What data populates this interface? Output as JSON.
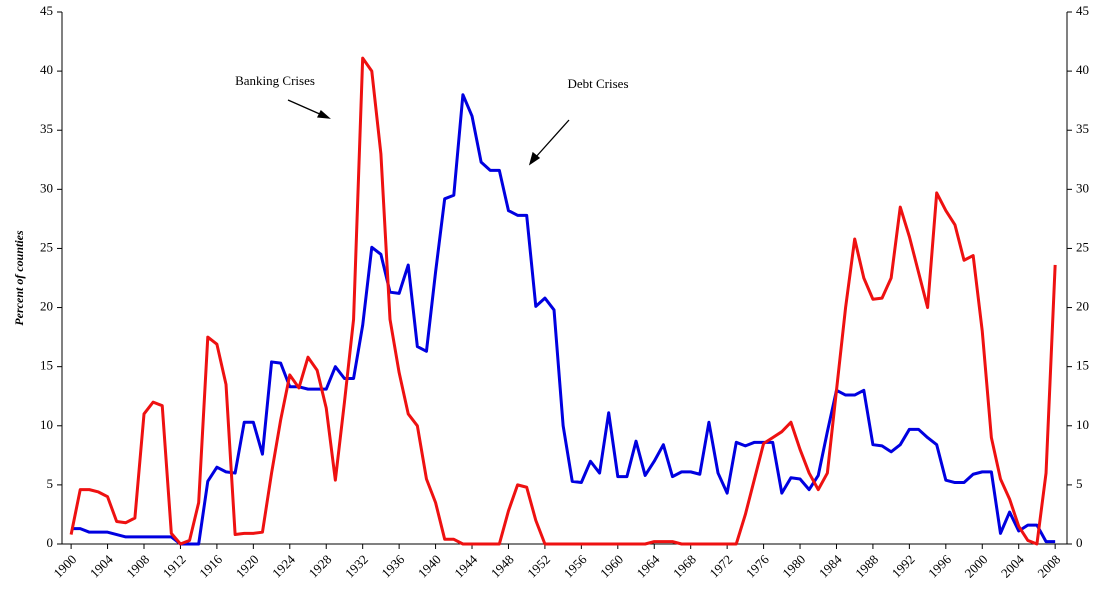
{
  "chart_data": {
    "type": "line",
    "y_label": "Percent of counties",
    "annotations": [
      "Banking Crises",
      "Debt Crises"
    ],
    "x": [
      1900,
      1901,
      1902,
      1903,
      1904,
      1905,
      1906,
      1907,
      1908,
      1909,
      1910,
      1911,
      1912,
      1913,
      1914,
      1915,
      1916,
      1917,
      1918,
      1919,
      1920,
      1921,
      1922,
      1923,
      1924,
      1925,
      1926,
      1927,
      1928,
      1929,
      1930,
      1931,
      1932,
      1933,
      1934,
      1935,
      1936,
      1937,
      1938,
      1939,
      1940,
      1941,
      1942,
      1943,
      1944,
      1945,
      1946,
      1947,
      1948,
      1949,
      1950,
      1951,
      1952,
      1953,
      1954,
      1955,
      1956,
      1957,
      1958,
      1959,
      1960,
      1961,
      1962,
      1963,
      1964,
      1965,
      1966,
      1967,
      1968,
      1969,
      1970,
      1971,
      1972,
      1973,
      1974,
      1975,
      1976,
      1977,
      1978,
      1979,
      1980,
      1981,
      1982,
      1983,
      1984,
      1985,
      1986,
      1987,
      1988,
      1989,
      1990,
      1991,
      1992,
      1993,
      1994,
      1995,
      1996,
      1997,
      1998,
      1999,
      2000,
      2001,
      2002,
      2003,
      2004,
      2005,
      2006,
      2007,
      2008
    ],
    "series": [
      {
        "name": "Debt Crises",
        "color": "#0000e0",
        "values": [
          1.3,
          1.3,
          1.0,
          1.0,
          1.0,
          0.8,
          0.6,
          0.6,
          0.6,
          0.6,
          0.6,
          0.6,
          0,
          0,
          0,
          5.3,
          6.5,
          6.1,
          6.0,
          10.3,
          10.3,
          7.6,
          15.4,
          15.3,
          13.3,
          13.3,
          13.1,
          13.1,
          13.1,
          15.0,
          14.0,
          14.0,
          18.5,
          25.1,
          24.5,
          21.3,
          21.2,
          23.6,
          16.7,
          16.3,
          23.0,
          29.2,
          29.5,
          38.0,
          36.2,
          32.3,
          31.6,
          31.6,
          28.2,
          27.8,
          27.8,
          20.1,
          20.8,
          19.8,
          10.0,
          5.3,
          5.2,
          7.0,
          6.0,
          11.1,
          5.7,
          5.7,
          8.7,
          5.8,
          7.0,
          8.4,
          5.7,
          6.1,
          6.1,
          5.9,
          10.3,
          6.0,
          4.3,
          8.6,
          8.3,
          8.6,
          8.6,
          8.6,
          4.3,
          5.6,
          5.5,
          4.6,
          5.8,
          9.5,
          13.0,
          12.6,
          12.6,
          13.0,
          8.4,
          8.3,
          7.8,
          8.4,
          9.7,
          9.7,
          9.0,
          8.4,
          5.4,
          5.2,
          5.2,
          5.9,
          6.1,
          6.1,
          0.9,
          2.7,
          1.1,
          1.6,
          1.6,
          0.2,
          0.2
        ]
      },
      {
        "name": "Banking Crises",
        "color": "#ee1111",
        "values": [
          0.8,
          4.6,
          4.6,
          4.4,
          4.0,
          1.9,
          1.8,
          2.2,
          11.0,
          12.0,
          11.7,
          0.9,
          0,
          0.3,
          3.5,
          17.5,
          16.9,
          13.5,
          0.8,
          0.9,
          0.9,
          1.0,
          6.0,
          10.5,
          14.3,
          13.2,
          15.8,
          14.7,
          11.5,
          5.4,
          12,
          19,
          41.1,
          40,
          33,
          19,
          14.5,
          11,
          10,
          5.5,
          3.5,
          0.4,
          0.4,
          0,
          0,
          0,
          0,
          0,
          2.8,
          5.0,
          4.8,
          2.0,
          0,
          0,
          0,
          0,
          0,
          0,
          0,
          0,
          0,
          0,
          0,
          0,
          0.2,
          0.2,
          0.2,
          0,
          0,
          0,
          0,
          0,
          0,
          0,
          2.5,
          5.5,
          8.5,
          9.0,
          9.5,
          10.3,
          8.0,
          6.0,
          4.6,
          6.0,
          13,
          20,
          25.8,
          22.5,
          20.7,
          20.8,
          22.5,
          28.5,
          26,
          23,
          20,
          29.7,
          28.2,
          27,
          24,
          24.4,
          18,
          9,
          5.5,
          3.8,
          1.5,
          0.3,
          0,
          6,
          23.6
        ]
      }
    ],
    "xlim": [
      1899,
      2009.3
    ],
    "xticks": [
      1900,
      1904,
      1908,
      1912,
      1916,
      1920,
      1924,
      1928,
      1932,
      1936,
      1940,
      1944,
      1948,
      1952,
      1956,
      1960,
      1964,
      1968,
      1972,
      1976,
      1980,
      1984,
      1988,
      1992,
      1996,
      2000,
      2004,
      2008
    ],
    "ylim": [
      0,
      45
    ],
    "yticks": [
      0,
      5,
      10,
      15,
      20,
      25,
      30,
      35,
      40,
      45
    ],
    "y2lim": [
      0,
      45
    ],
    "y2ticks": [
      0,
      5,
      10,
      15,
      20,
      25,
      30,
      35,
      40,
      45
    ]
  }
}
